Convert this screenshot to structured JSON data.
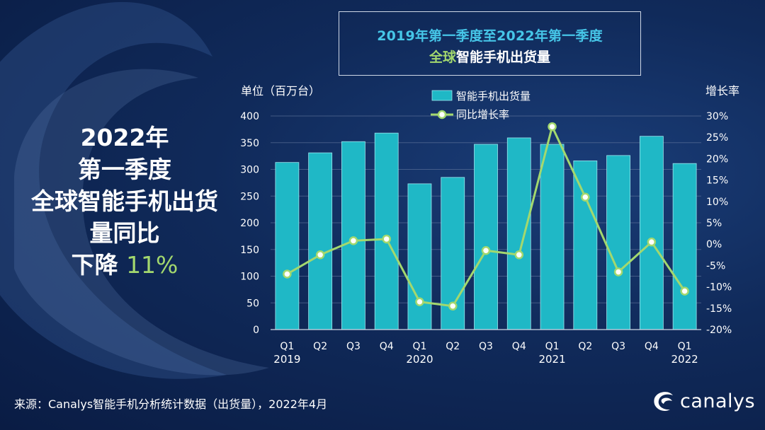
{
  "title": {
    "line1": "2019年第一季度至2022年第一季度",
    "line2_green": "全球",
    "line2_white": "智能手机出货量"
  },
  "headline": {
    "line1": "2022年",
    "line2": "第一季度",
    "line3": "全球智能手机出货",
    "line4": "量同比",
    "line5_prefix": "下降 ",
    "line5_pct": "11%"
  },
  "source": "来源：Canalys智能手机分析统计数据（出货量），2022年4月",
  "brand": "canalys",
  "colors": {
    "bar": "#1fb8c6",
    "line": "#a3d86e",
    "accent_blue": "#46c6e8",
    "accent_green": "#a3d86e",
    "grid": "#6c7fa3"
  },
  "chart_data": {
    "type": "bar+line",
    "categories": [
      "Q1",
      "Q2",
      "Q3",
      "Q4",
      "Q1",
      "Q2",
      "Q3",
      "Q4",
      "Q1",
      "Q2",
      "Q3",
      "Q4",
      "Q1"
    ],
    "year_labels": [
      "2019",
      "2020",
      "2021",
      "2022"
    ],
    "year_label_positions": [
      0,
      4,
      8,
      12
    ],
    "series": [
      {
        "name": "智能手机出货量",
        "kind": "bar",
        "axis": "left",
        "values": [
          313,
          331,
          352,
          368,
          273,
          285,
          347,
          359,
          347,
          316,
          326,
          362,
          311
        ]
      },
      {
        "name": "同比增长率",
        "kind": "line",
        "axis": "right",
        "values": [
          -7.0,
          -2.5,
          0.8,
          1.2,
          -13.5,
          -14.5,
          -1.5,
          -2.5,
          27.5,
          11.0,
          -6.5,
          0.5,
          -11.0
        ]
      }
    ],
    "left_axis": {
      "label": "单位（百万台）",
      "min": 0,
      "max": 400,
      "ticks": [
        0,
        50,
        100,
        150,
        200,
        250,
        300,
        350,
        400
      ]
    },
    "right_axis": {
      "label": "增长率",
      "min": -20,
      "max": 30,
      "ticks": [
        -20,
        -15,
        -10,
        -5,
        0,
        5,
        10,
        15,
        20,
        25,
        30
      ],
      "tick_labels": [
        "-20%",
        "-15%",
        "-10%",
        "-5%",
        "0%",
        "5%",
        "10%",
        "15%",
        "20%",
        "25%",
        "30%"
      ]
    },
    "legend_position": "top-center"
  }
}
